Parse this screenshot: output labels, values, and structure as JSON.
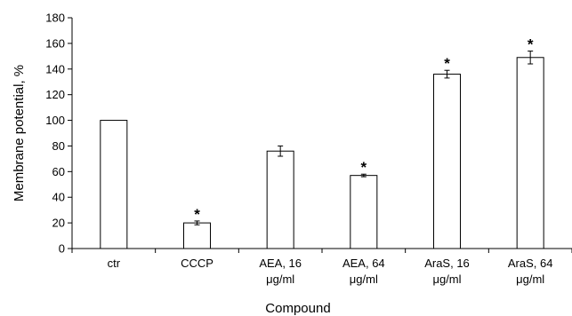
{
  "chart_data": {
    "type": "bar",
    "xlabel": "Compound",
    "ylabel": "Membrane potential, %",
    "ylim": [
      0,
      180
    ],
    "yticks": [
      0,
      20,
      40,
      60,
      80,
      100,
      120,
      140,
      160,
      180
    ],
    "categories": [
      [
        "ctr"
      ],
      [
        "CCCP"
      ],
      [
        "AEA, 16",
        "μg/ml"
      ],
      [
        "AEA, 64",
        "μg/ml"
      ],
      [
        "AraS, 16",
        "μg/ml"
      ],
      [
        "AraS, 64",
        "μg/ml"
      ]
    ],
    "values": [
      100,
      20,
      76,
      57,
      136,
      149
    ],
    "errors": [
      0,
      1.5,
      4,
      1,
      3,
      5
    ],
    "significance": [
      "",
      "*",
      "",
      "*",
      "*",
      "*"
    ],
    "grid": false,
    "legend": "none"
  }
}
